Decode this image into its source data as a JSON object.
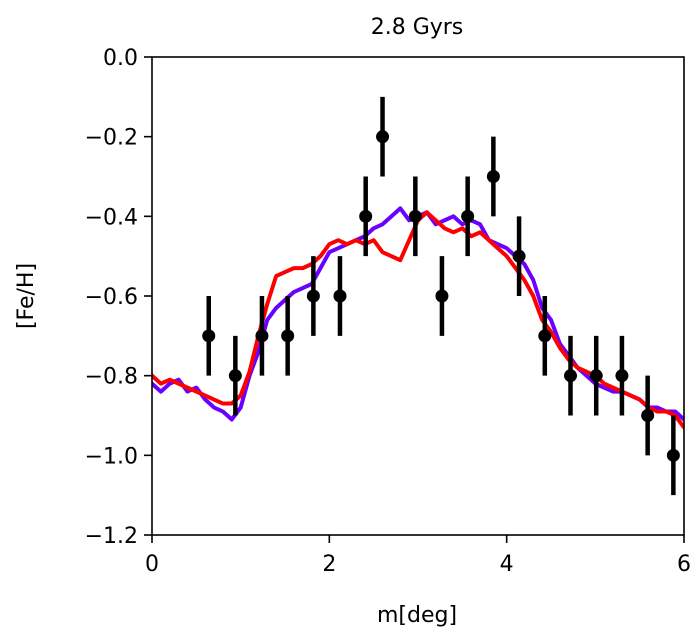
{
  "chart_data": {
    "type": "line",
    "title": "2.8 Gyrs",
    "xlabel": "m[deg]",
    "ylabel": "[Fe/H]",
    "xlim": [
      0,
      6
    ],
    "ylim": [
      -1.2,
      0.0
    ],
    "x_ticks": [
      0,
      2,
      4,
      6
    ],
    "x_tick_labels": [
      "0",
      "2",
      "4",
      "6"
    ],
    "y_ticks": [
      0.0,
      -0.2,
      -0.4,
      -0.6,
      -0.8,
      -1.0,
      -1.2
    ],
    "y_tick_labels": [
      "0.0",
      "−0.2",
      "−0.4",
      "−0.6",
      "−0.8",
      "−1.0",
      "−1.2"
    ],
    "grid": false,
    "series": [
      {
        "kind": "line",
        "color": "#6a00ff",
        "x": [
          0.0,
          0.1,
          0.2,
          0.3,
          0.4,
          0.5,
          0.6,
          0.7,
          0.8,
          0.9,
          1.0,
          1.1,
          1.2,
          1.3,
          1.4,
          1.5,
          1.6,
          1.7,
          1.8,
          1.9,
          2.0,
          2.1,
          2.2,
          2.3,
          2.4,
          2.5,
          2.6,
          2.7,
          2.8,
          2.9,
          3.0,
          3.1,
          3.2,
          3.3,
          3.4,
          3.5,
          3.6,
          3.7,
          3.8,
          3.9,
          4.0,
          4.1,
          4.2,
          4.3,
          4.4,
          4.5,
          4.6,
          4.7,
          4.8,
          4.9,
          5.0,
          5.1,
          5.2,
          5.3,
          5.4,
          5.5,
          5.6,
          5.7,
          5.8,
          5.9,
          6.0
        ],
        "y": [
          -0.82,
          -0.84,
          -0.82,
          -0.81,
          -0.84,
          -0.83,
          -0.86,
          -0.88,
          -0.89,
          -0.91,
          -0.88,
          -0.8,
          -0.74,
          -0.66,
          -0.63,
          -0.61,
          -0.59,
          -0.58,
          -0.57,
          -0.53,
          -0.49,
          -0.48,
          -0.47,
          -0.46,
          -0.45,
          -0.43,
          -0.42,
          -0.4,
          -0.38,
          -0.41,
          -0.4,
          -0.39,
          -0.42,
          -0.41,
          -0.4,
          -0.42,
          -0.41,
          -0.42,
          -0.46,
          -0.47,
          -0.48,
          -0.5,
          -0.52,
          -0.56,
          -0.63,
          -0.66,
          -0.72,
          -0.75,
          -0.78,
          -0.8,
          -0.82,
          -0.83,
          -0.84,
          -0.84,
          -0.85,
          -0.86,
          -0.88,
          -0.88,
          -0.89,
          -0.89,
          -0.91
        ]
      },
      {
        "kind": "line",
        "color": "#ff0000",
        "x": [
          0.0,
          0.1,
          0.2,
          0.3,
          0.4,
          0.5,
          0.6,
          0.7,
          0.8,
          0.9,
          1.0,
          1.1,
          1.2,
          1.3,
          1.4,
          1.5,
          1.6,
          1.7,
          1.8,
          1.9,
          2.0,
          2.1,
          2.2,
          2.3,
          2.4,
          2.5,
          2.6,
          2.7,
          2.8,
          2.9,
          3.0,
          3.1,
          3.2,
          3.3,
          3.4,
          3.5,
          3.6,
          3.7,
          3.8,
          3.9,
          4.0,
          4.1,
          4.2,
          4.3,
          4.4,
          4.5,
          4.6,
          4.7,
          4.8,
          4.9,
          5.0,
          5.1,
          5.2,
          5.3,
          5.4,
          5.5,
          5.6,
          5.7,
          5.8,
          5.9,
          6.0
        ],
        "y": [
          -0.8,
          -0.82,
          -0.81,
          -0.82,
          -0.83,
          -0.84,
          -0.85,
          -0.86,
          -0.87,
          -0.87,
          -0.85,
          -0.79,
          -0.7,
          -0.62,
          -0.55,
          -0.54,
          -0.53,
          -0.53,
          -0.52,
          -0.5,
          -0.47,
          -0.46,
          -0.47,
          -0.46,
          -0.47,
          -0.46,
          -0.49,
          -0.5,
          -0.51,
          -0.46,
          -0.41,
          -0.39,
          -0.41,
          -0.43,
          -0.44,
          -0.43,
          -0.45,
          -0.44,
          -0.46,
          -0.48,
          -0.5,
          -0.53,
          -0.56,
          -0.6,
          -0.66,
          -0.69,
          -0.73,
          -0.76,
          -0.78,
          -0.79,
          -0.8,
          -0.82,
          -0.83,
          -0.84,
          -0.85,
          -0.86,
          -0.88,
          -0.89,
          -0.89,
          -0.9,
          -0.93
        ]
      },
      {
        "kind": "errorbar",
        "color": "#000000",
        "x": [
          0.64,
          0.94,
          1.24,
          1.53,
          1.82,
          2.12,
          2.41,
          2.6,
          2.97,
          3.27,
          3.56,
          3.85,
          4.14,
          4.43,
          4.72,
          5.01,
          5.3,
          5.59,
          5.88
        ],
        "y": [
          -0.7,
          -0.8,
          -0.7,
          -0.7,
          -0.6,
          -0.6,
          -0.4,
          -0.2,
          -0.4,
          -0.6,
          -0.4,
          -0.3,
          -0.5,
          -0.7,
          -0.8,
          -0.8,
          -0.8,
          -0.9,
          -1.0
        ],
        "yerr": 0.1
      }
    ]
  }
}
